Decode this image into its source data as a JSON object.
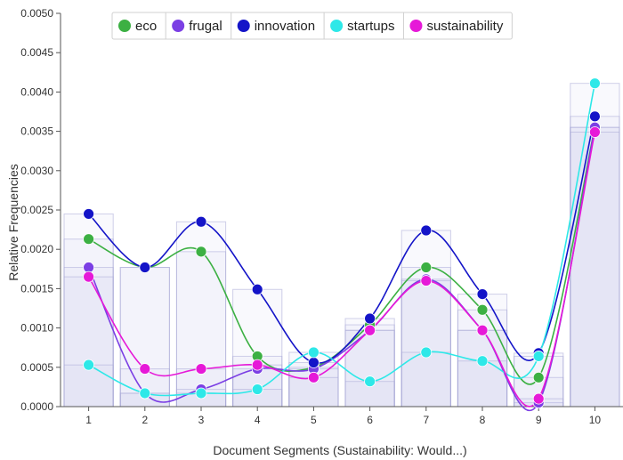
{
  "chart_data": {
    "type": "line",
    "xlabel": "Document Segments (Sustainability: Would...)",
    "ylabel": "Relative Frequencies",
    "ylim": [
      0,
      0.005
    ],
    "yticks": [
      "0.0000",
      "0.0005",
      "0.0010",
      "0.0015",
      "0.0020",
      "0.0025",
      "0.0030",
      "0.0035",
      "0.0040",
      "0.0045",
      "0.0050"
    ],
    "categories": [
      "1",
      "2",
      "3",
      "4",
      "5",
      "6",
      "7",
      "8",
      "9",
      "10"
    ],
    "legend_position": "top-center",
    "bar_background": "per-segment light bars behind each series",
    "series": [
      {
        "name": "eco",
        "color": "#3cb043",
        "values": [
          0.00213,
          0.00177,
          0.00197,
          0.00064,
          0.0005,
          0.00104,
          0.00177,
          0.00123,
          0.00037,
          0.00355
        ]
      },
      {
        "name": "frugal",
        "color": "#7b3fe4",
        "values": [
          0.00177,
          0.00017,
          0.00022,
          0.00048,
          0.00048,
          0.00097,
          0.00162,
          0.00097,
          5e-05,
          0.00355
        ]
      },
      {
        "name": "innovation",
        "color": "#1414c8",
        "values": [
          0.00245,
          0.00177,
          0.00235,
          0.00149,
          0.00056,
          0.00112,
          0.00224,
          0.00143,
          0.00068,
          0.00369
        ]
      },
      {
        "name": "startups",
        "color": "#2ee8e8",
        "values": [
          0.00053,
          0.00017,
          0.00017,
          0.00022,
          0.00069,
          0.00032,
          0.00069,
          0.00058,
          0.00064,
          0.00411
        ]
      },
      {
        "name": "sustainability",
        "color": "#e619d8",
        "values": [
          0.00165,
          0.00048,
          0.00048,
          0.00053,
          0.00037,
          0.00097,
          0.0016,
          0.00097,
          0.0001,
          0.00349
        ]
      }
    ]
  }
}
